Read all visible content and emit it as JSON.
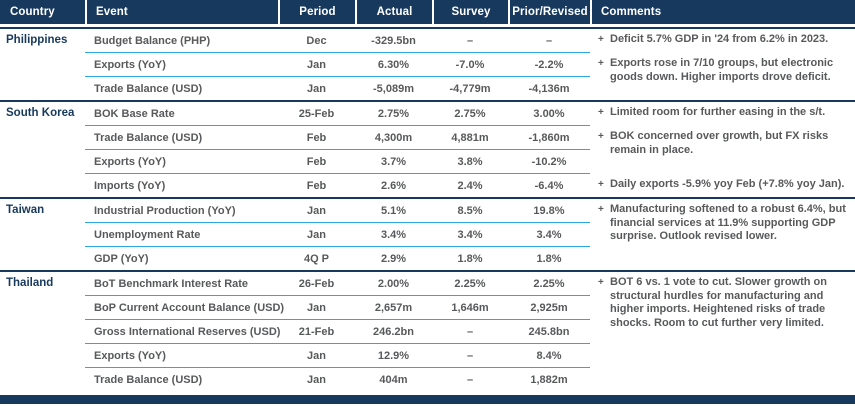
{
  "colors": {
    "navy": "#18395E",
    "cyan": "#2BA9DF",
    "gray": "#58595B"
  },
  "table": {
    "columns": [
      "Country",
      "Event",
      "Period",
      "Actual",
      "Survey",
      "Prior/Revised",
      "Comments"
    ],
    "bullet_glyph": "+",
    "sections": [
      {
        "country": "Philippines",
        "rows": [
          {
            "event": "Budget Balance (PHP)",
            "period": "Dec",
            "actual": "-329.5bn",
            "survey": "–",
            "prior": "–"
          },
          {
            "event": "Exports (YoY)",
            "period": "Jan",
            "actual": "6.30%",
            "survey": "-7.0%",
            "prior": "-2.2%"
          },
          {
            "event": "Trade Balance (USD)",
            "period": "Jan",
            "actual": "-5,089m",
            "survey": "-4,779m",
            "prior": "-4,136m"
          }
        ],
        "comments": [
          {
            "row": 0,
            "text": "Deficit 5.7% GDP in '24 from 6.2% in 2023."
          },
          {
            "row": 1,
            "text": "Exports rose in 7/10 groups, but electronic goods down. Higher imports drove deficit."
          }
        ]
      },
      {
        "country": "South Korea",
        "rows": [
          {
            "event": "BOK Base Rate",
            "period": "25-Feb",
            "actual": "2.75%",
            "survey": "2.75%",
            "prior": "3.00%"
          },
          {
            "event": "Trade Balance (USD)",
            "period": "Feb",
            "actual": "4,300m",
            "survey": "4,881m",
            "prior": "-1,860m"
          },
          {
            "event": "Exports (YoY)",
            "period": "Feb",
            "actual": "3.7%",
            "survey": "3.8%",
            "prior": "-10.2%"
          },
          {
            "event": "Imports (YoY)",
            "period": "Feb",
            "actual": "2.6%",
            "survey": "2.4%",
            "prior": "-6.4%"
          }
        ],
        "comments": [
          {
            "row": 0,
            "text": "Limited room for further easing in the s/t."
          },
          {
            "row": 1,
            "text": "BOK concerned over growth, but FX risks remain in place."
          },
          {
            "row": 3,
            "text": "Daily exports -5.9% yoy Feb (+7.8% yoy Jan)."
          }
        ]
      },
      {
        "country": "Taiwan",
        "rows": [
          {
            "event": "Industrial Production (YoY)",
            "period": "Jan",
            "actual": "5.1%",
            "survey": "8.5%",
            "prior": "19.8%"
          },
          {
            "event": "Unemployment Rate",
            "period": "Jan",
            "actual": "3.4%",
            "survey": "3.4%",
            "prior": "3.4%"
          },
          {
            "event": "GDP (YoY)",
            "period": "4Q P",
            "actual": "2.9%",
            "survey": "1.8%",
            "prior": "1.8%"
          }
        ],
        "comments": [
          {
            "row": 0,
            "text": "Manufacturing softened to a robust 6.4%, but financial services at 11.9% supporting GDP surprise. Outlook revised lower."
          }
        ]
      },
      {
        "country": "Thailand",
        "rows": [
          {
            "event": "BoT Benchmark Interest Rate",
            "period": "26-Feb",
            "actual": "2.00%",
            "survey": "2.25%",
            "prior": "2.25%"
          },
          {
            "event": "BoP Current Account Balance (USD)",
            "period": "Jan",
            "actual": "2,657m",
            "survey": "1,646m",
            "prior": "2,925m"
          },
          {
            "event": "Gross International Reserves (USD)",
            "period": "21-Feb",
            "actual": "246.2bn",
            "survey": "–",
            "prior": "245.8bn"
          },
          {
            "event": "Exports (YoY)",
            "period": "Jan",
            "actual": "12.9%",
            "survey": "–",
            "prior": "8.4%"
          },
          {
            "event": "Trade Balance (USD)",
            "period": "Jan",
            "actual": "404m",
            "survey": "–",
            "prior": "1,882m"
          }
        ],
        "comments": [
          {
            "row": 0,
            "text": "BOT 6 vs. 1 vote to cut. Slower growth on structural hurdles for manufacturing and higher imports. Heightened risks of trade shocks. Room to cut further very limited."
          }
        ]
      }
    ]
  }
}
